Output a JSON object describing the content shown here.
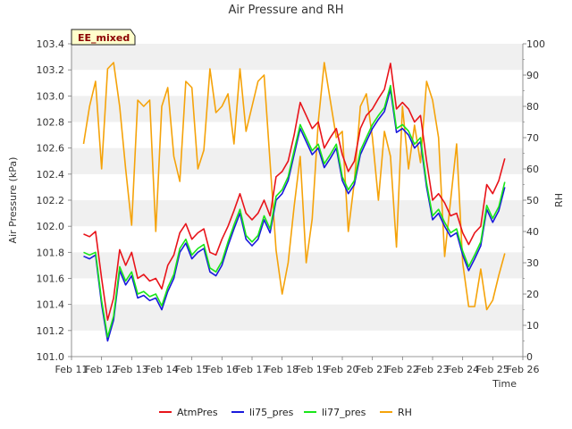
{
  "chart_data": {
    "type": "line",
    "title": "Air Pressure and RH",
    "badge": "EE_mixed",
    "xlabel": "Time",
    "ylabel": "Air Pressure (kPa)",
    "y2label": "RH",
    "x_ticks": [
      "Feb 11",
      "Feb 12",
      "Feb 13",
      "Feb 14",
      "Feb 15",
      "Feb 16",
      "Feb 17",
      "Feb 18",
      "Feb 19",
      "Feb 20",
      "Feb 21",
      "Feb 22",
      "Feb 23",
      "Feb 24",
      "Feb 25",
      "Feb 26"
    ],
    "xlim": [
      11,
      26
    ],
    "ylim": [
      101.0,
      103.4
    ],
    "y_ticks": [
      "101.0",
      "101.2",
      "101.4",
      "101.6",
      "101.8",
      "102.0",
      "102.2",
      "102.4",
      "102.6",
      "102.8",
      "103.0",
      "103.2",
      "103.4"
    ],
    "y2lim": [
      0,
      100
    ],
    "y2_ticks": [
      "0",
      "10",
      "20",
      "30",
      "40",
      "50",
      "60",
      "70",
      "80",
      "90",
      "100"
    ],
    "grid": "horizontal bands",
    "legend_position": "bottom",
    "x": [
      11.4,
      11.6,
      11.8,
      12.0,
      12.2,
      12.4,
      12.6,
      12.8,
      13.0,
      13.2,
      13.4,
      13.6,
      13.8,
      14.0,
      14.2,
      14.4,
      14.6,
      14.8,
      15.0,
      15.2,
      15.4,
      15.6,
      15.8,
      16.0,
      16.2,
      16.4,
      16.6,
      16.8,
      17.0,
      17.2,
      17.4,
      17.6,
      17.8,
      18.0,
      18.2,
      18.4,
      18.6,
      18.8,
      19.0,
      19.2,
      19.4,
      19.6,
      19.8,
      20.0,
      20.2,
      20.4,
      20.6,
      20.8,
      21.0,
      21.2,
      21.4,
      21.6,
      21.8,
      22.0,
      22.2,
      22.4,
      22.6,
      22.8,
      23.0,
      23.2,
      23.4,
      23.6,
      23.8,
      24.0,
      24.2,
      24.4,
      24.6,
      24.8,
      25.0,
      25.2,
      25.4
    ],
    "series": [
      {
        "name": "AtmPres",
        "color": "#e8141a",
        "axis": "left",
        "values": [
          101.94,
          101.92,
          101.96,
          101.6,
          101.28,
          101.45,
          101.82,
          101.7,
          101.8,
          101.6,
          101.63,
          101.58,
          101.6,
          101.52,
          101.7,
          101.78,
          101.95,
          102.02,
          101.9,
          101.95,
          101.98,
          101.8,
          101.78,
          101.9,
          102.0,
          102.12,
          102.25,
          102.1,
          102.05,
          102.1,
          102.2,
          102.08,
          102.38,
          102.42,
          102.5,
          102.7,
          102.95,
          102.85,
          102.75,
          102.8,
          102.6,
          102.68,
          102.75,
          102.55,
          102.42,
          102.5,
          102.75,
          102.85,
          102.9,
          102.98,
          103.05,
          103.25,
          102.9,
          102.95,
          102.9,
          102.8,
          102.85,
          102.5,
          102.2,
          102.25,
          102.18,
          102.08,
          102.1,
          101.95,
          101.86,
          101.95,
          102.0,
          102.32,
          102.25,
          102.35,
          102.52
        ]
      },
      {
        "name": "li75_pres",
        "color": "#1a1adc",
        "axis": "left",
        "values": [
          101.77,
          101.75,
          101.78,
          101.4,
          101.12,
          101.28,
          101.66,
          101.55,
          101.62,
          101.45,
          101.47,
          101.43,
          101.45,
          101.36,
          101.5,
          101.6,
          101.8,
          101.87,
          101.75,
          101.8,
          101.83,
          101.65,
          101.62,
          101.7,
          101.85,
          101.98,
          102.1,
          101.9,
          101.85,
          101.9,
          102.05,
          101.95,
          102.2,
          102.25,
          102.35,
          102.55,
          102.75,
          102.65,
          102.55,
          102.6,
          102.45,
          102.52,
          102.6,
          102.35,
          102.25,
          102.32,
          102.55,
          102.65,
          102.75,
          102.82,
          102.88,
          103.05,
          102.72,
          102.75,
          102.7,
          102.6,
          102.65,
          102.3,
          102.05,
          102.1,
          102.0,
          101.92,
          101.95,
          101.78,
          101.66,
          101.75,
          101.85,
          102.13,
          102.03,
          102.12,
          102.3
        ]
      },
      {
        "name": "li77_pres",
        "color": "#19e619",
        "axis": "left",
        "values": [
          101.8,
          101.78,
          101.8,
          101.43,
          101.15,
          101.31,
          101.69,
          101.58,
          101.65,
          101.48,
          101.5,
          101.46,
          101.48,
          101.39,
          101.53,
          101.63,
          101.83,
          101.9,
          101.78,
          101.83,
          101.86,
          101.68,
          101.65,
          101.73,
          101.88,
          102.01,
          102.13,
          101.93,
          101.88,
          101.93,
          102.08,
          101.98,
          102.23,
          102.28,
          102.38,
          102.58,
          102.78,
          102.68,
          102.58,
          102.63,
          102.48,
          102.55,
          102.63,
          102.38,
          102.28,
          102.35,
          102.58,
          102.68,
          102.78,
          102.85,
          102.91,
          103.08,
          102.75,
          102.78,
          102.73,
          102.63,
          102.68,
          102.33,
          102.08,
          102.13,
          102.03,
          101.95,
          101.98,
          101.81,
          101.69,
          101.78,
          101.88,
          102.16,
          102.06,
          102.15,
          102.34
        ]
      },
      {
        "name": "RH",
        "color": "#f5a30a",
        "axis": "right",
        "values": [
          68,
          80,
          88,
          60,
          92,
          94,
          80,
          60,
          42,
          82,
          80,
          82,
          40,
          80,
          86,
          64,
          56,
          88,
          86,
          60,
          66,
          92,
          78,
          80,
          84,
          68,
          92,
          72,
          80,
          88,
          90,
          62,
          34,
          20,
          30,
          48,
          64,
          30,
          44,
          75,
          94,
          82,
          70,
          72,
          40,
          56,
          80,
          84,
          70,
          50,
          72,
          64,
          35,
          80,
          60,
          74,
          62,
          88,
          82,
          70,
          32,
          50,
          68,
          30,
          16,
          16,
          28,
          15,
          18,
          26,
          33
        ]
      }
    ]
  }
}
